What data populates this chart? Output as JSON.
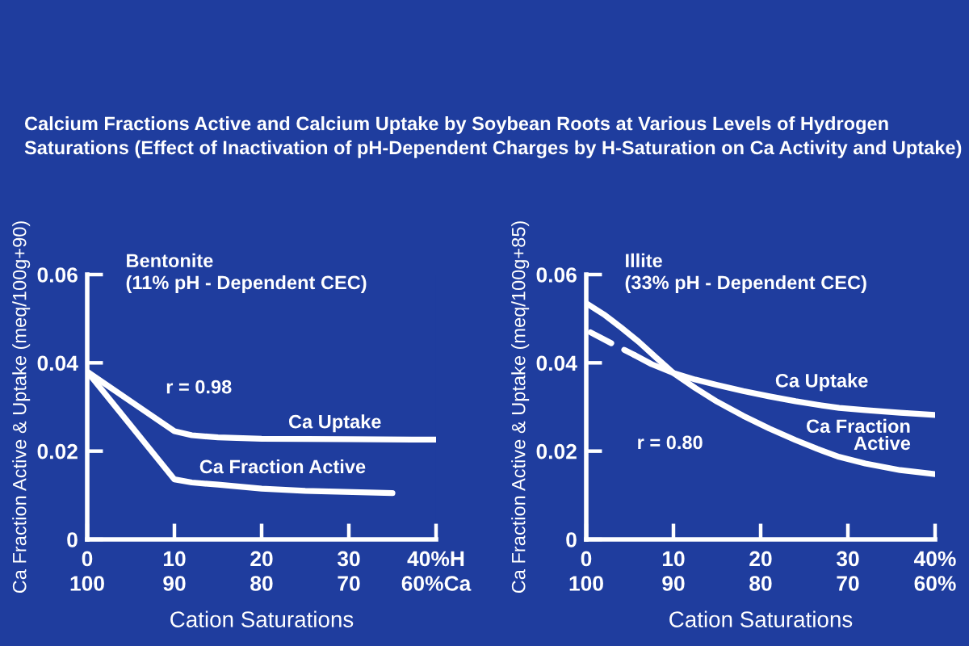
{
  "chart_data": [
    {
      "type": "line",
      "title": "Calcium Fractions Active and Calcium Uptake by Soybean Roots at Various Levels of Hydrogen Saturations (Effect of Inactivation of pH-Dependent Charges by H-Saturation on Ca Activity and Uptake)",
      "xlabel": "Cation Saturations",
      "ylabel": "Ca Fraction Active & Uptake (meq/100g+90)",
      "annotations": [
        "Bentonite\n(11% pH - Dependent CEC)",
        "r = 0.98"
      ],
      "xlim": [
        0,
        40
      ],
      "xticks": [
        0,
        10,
        20,
        30,
        {
          "value": 40,
          "label": "40%H"
        }
      ],
      "x2lim": [
        100,
        60
      ],
      "x2ticks": [
        100,
        90,
        80,
        70,
        {
          "value": 60,
          "label": "60%Ca"
        }
      ],
      "ylim": [
        0,
        0.06
      ],
      "yticks": [
        0,
        0.02,
        0.04,
        0.06
      ],
      "series": [
        {
          "name": "Ca Uptake",
          "color": "#ffffff",
          "x": [
            0,
            10,
            12,
            15,
            20,
            30,
            40
          ],
          "values": [
            0.038,
            0.0245,
            0.0236,
            0.0231,
            0.0228,
            0.0227,
            0.0226
          ]
        },
        {
          "name": "Ca Fraction Active",
          "color": "#ffffff",
          "x": [
            0,
            10,
            12,
            15,
            20,
            25,
            35
          ],
          "values": [
            0.038,
            0.0136,
            0.0129,
            0.0124,
            0.0115,
            0.011,
            0.0105
          ]
        }
      ]
    },
    {
      "type": "line",
      "xlabel": "Cation Saturations",
      "ylabel": "Ca Fraction Active & Uptake (meq/100g+85)",
      "annotations": [
        "Illite\n(33% pH - Dependent CEC)",
        "r = 0.80"
      ],
      "xlim": [
        0,
        40
      ],
      "xticks": [
        0,
        10,
        20,
        30,
        {
          "value": 40,
          "label": "40%"
        }
      ],
      "x2lim": [
        100,
        60
      ],
      "x2ticks": [
        100,
        90,
        80,
        70,
        {
          "value": 60,
          "label": "60%"
        }
      ],
      "ylim": [
        0,
        0.06
      ],
      "yticks": [
        0,
        0.02,
        0.04,
        0.06
      ],
      "series": [
        {
          "name": "Ca Uptake",
          "color": "#ffffff",
          "x": [
            5.5,
            7.5,
            10,
            12.5,
            15,
            18,
            21,
            24,
            26.5,
            29,
            32,
            36,
            40
          ],
          "values": [
            0.0418,
            0.0397,
            0.0377,
            0.0362,
            0.035,
            0.0336,
            0.0324,
            0.0313,
            0.0305,
            0.0298,
            0.0293,
            0.0287,
            0.0282
          ]
        },
        {
          "name": "Ca Fraction\nActive",
          "color": "#ffffff",
          "x": [
            0,
            2,
            4,
            6,
            8,
            10,
            12.5,
            15,
            18,
            21,
            24,
            26.5,
            29,
            32,
            36,
            40
          ],
          "values": [
            0.0535,
            0.051,
            0.048,
            0.0448,
            0.0412,
            0.0377,
            0.0343,
            0.0312,
            0.028,
            0.0251,
            0.0225,
            0.0205,
            0.0187,
            0.0172,
            0.0157,
            0.0148
          ]
        },
        {
          "color": "#ffffff",
          "line_style": "dashed",
          "x": [
            0.5,
            3,
            5.5
          ],
          "values": [
            0.0469,
            0.0443,
            0.0418
          ]
        }
      ]
    }
  ]
}
